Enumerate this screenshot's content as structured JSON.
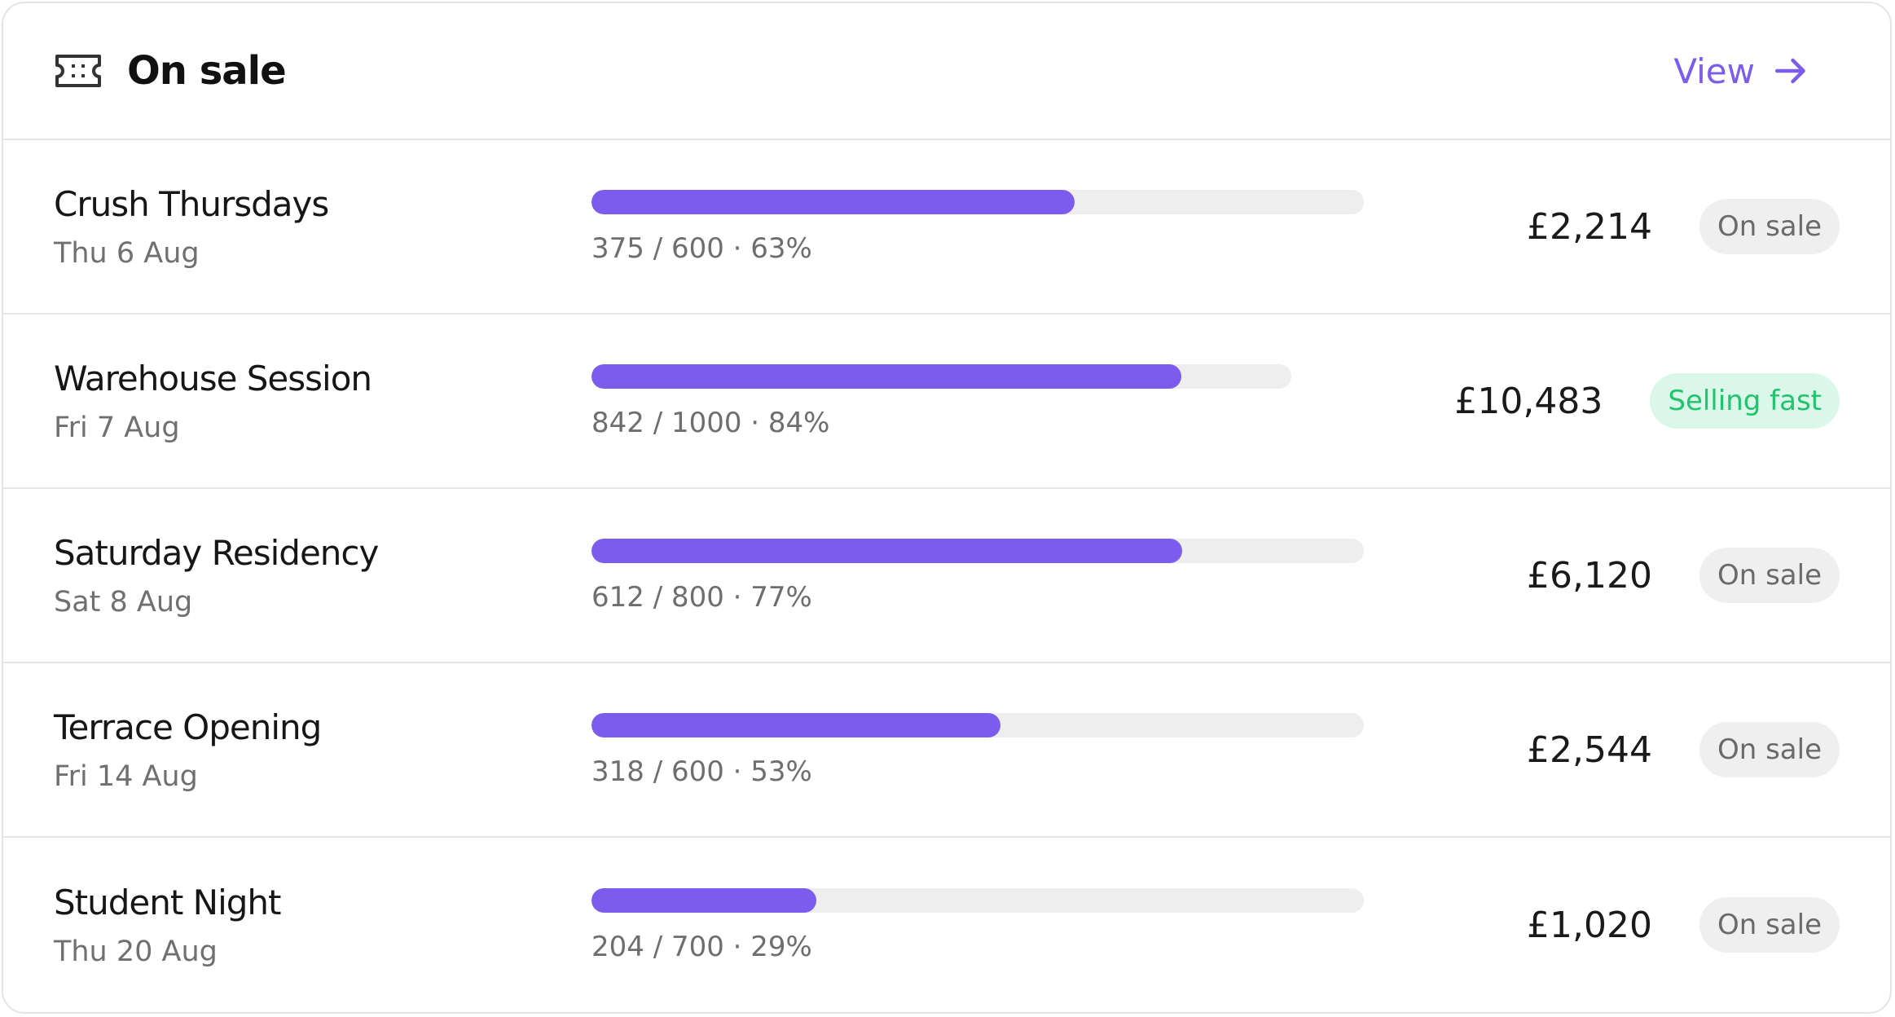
{
  "header": {
    "title": "On sale",
    "link": "View"
  },
  "rows": [
    {
      "name": "Crush Thursdays",
      "date": "Thu 6 Aug",
      "sold": 375,
      "capacity": 600,
      "label": "375 / 600 · 63%",
      "revenue": "£2,214",
      "status": "On sale"
    },
    {
      "name": "Warehouse Session",
      "date": "Fri 7 Aug",
      "sold": 842,
      "capacity": 1000,
      "label": "842 / 1000 · 84%",
      "revenue": "£10,483",
      "status": "Selling fast"
    },
    {
      "name": "Saturday Residency",
      "date": "Sat 8 Aug",
      "sold": 612,
      "capacity": 800,
      "label": "612 / 800 · 77%",
      "revenue": "£6,120",
      "status": "On sale"
    },
    {
      "name": "Terrace Opening",
      "date": "Fri 14 Aug",
      "sold": 318,
      "capacity": 600,
      "label": "318 / 600 · 53%",
      "revenue": "£2,544",
      "status": "On sale"
    },
    {
      "name": "Student Night",
      "date": "Thu 20 Aug",
      "sold": 204,
      "capacity": 700,
      "label": "204 / 700 · 29%",
      "revenue": "£1,020",
      "status": "On sale"
    }
  ]
}
